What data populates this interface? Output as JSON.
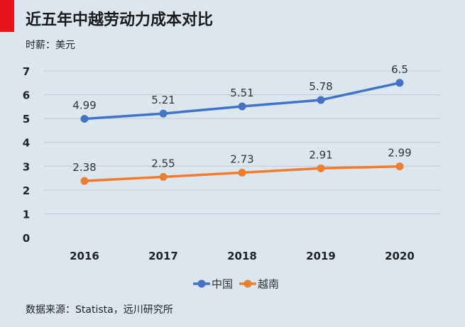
{
  "header": {
    "title": "近五年中越劳动力成本对比",
    "subtitle": "时薪：美元"
  },
  "footer": {
    "source": "数据来源：Statista，远川研究所"
  },
  "colors": {
    "accent_bar": "#e8141b",
    "china": "#4472c4",
    "vietnam": "#ed7d31",
    "gridline": "#bfc9d3",
    "background": "#dce6ef"
  },
  "chart_data": {
    "type": "line",
    "title": "近五年中越劳动力成本对比",
    "subtitle": "时薪：美元",
    "xlabel": "",
    "ylabel": "",
    "categories": [
      "2016",
      "2017",
      "2018",
      "2019",
      "2020"
    ],
    "y_ticks": [
      "0",
      "1",
      "2",
      "3",
      "4",
      "5",
      "6",
      "7"
    ],
    "ylim": [
      0,
      7
    ],
    "grid": true,
    "legend": "bottom",
    "series": [
      {
        "name": "中国",
        "values": [
          4.99,
          5.21,
          5.51,
          5.78,
          6.5
        ],
        "labels": [
          "4.99",
          "5.21",
          "5.51",
          "5.78",
          "6.5"
        ]
      },
      {
        "name": "越南",
        "values": [
          2.38,
          2.55,
          2.73,
          2.91,
          2.99
        ],
        "labels": [
          "2.38",
          "2.55",
          "2.73",
          "2.91",
          "2.99"
        ]
      }
    ]
  }
}
